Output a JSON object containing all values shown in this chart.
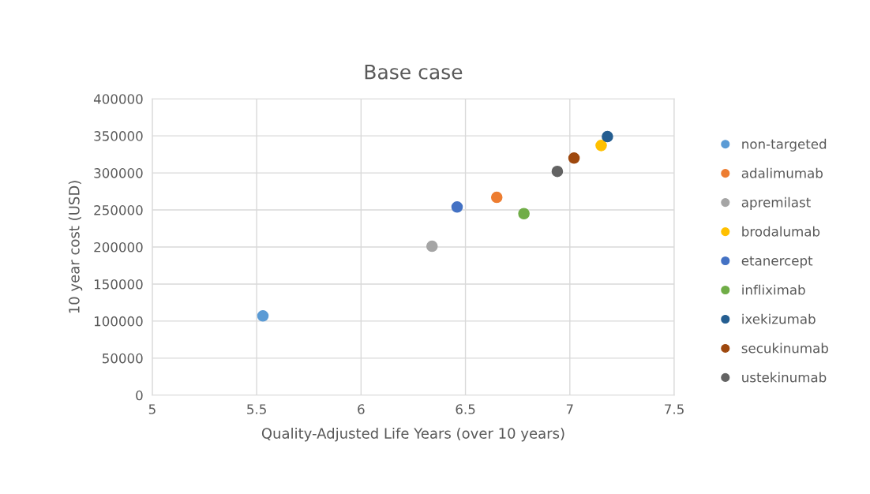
{
  "chart_data": {
    "type": "scatter",
    "title": "Base case",
    "xlabel": "Quality-Adjusted Life Years (over 10 years)",
    "ylabel": "10 year cost (USD)",
    "xlim": [
      5,
      7.5
    ],
    "xticks": [
      5,
      5.5,
      6,
      6.5,
      7,
      7.5
    ],
    "ylim": [
      0,
      400000
    ],
    "yticks": [
      0,
      50000,
      100000,
      150000,
      200000,
      250000,
      300000,
      350000,
      400000
    ],
    "grid": true,
    "legend": "right",
    "marker": "circle",
    "series": [
      {
        "name": "non-targeted",
        "color": "#5b9bd5",
        "x": [
          5.53
        ],
        "values": [
          107000
        ]
      },
      {
        "name": "adalimumab",
        "color": "#ed7d31",
        "x": [
          6.65
        ],
        "values": [
          267000
        ]
      },
      {
        "name": "apremilast",
        "color": "#a5a5a5",
        "x": [
          6.34
        ],
        "values": [
          201000
        ]
      },
      {
        "name": "brodalumab",
        "color": "#ffc000",
        "x": [
          7.15
        ],
        "values": [
          337000
        ]
      },
      {
        "name": "etanercept",
        "color": "#4472c4",
        "x": [
          6.46
        ],
        "values": [
          254000
        ]
      },
      {
        "name": "infliximab",
        "color": "#70ad47",
        "x": [
          6.78
        ],
        "values": [
          245000
        ]
      },
      {
        "name": "ixekizumab",
        "color": "#255e91",
        "x": [
          7.18
        ],
        "values": [
          349000
        ]
      },
      {
        "name": "secukinumab",
        "color": "#9e480e",
        "x": [
          7.02
        ],
        "values": [
          320000
        ]
      },
      {
        "name": "ustekinumab",
        "color": "#636363",
        "x": [
          6.94
        ],
        "values": [
          302000
        ]
      }
    ]
  }
}
